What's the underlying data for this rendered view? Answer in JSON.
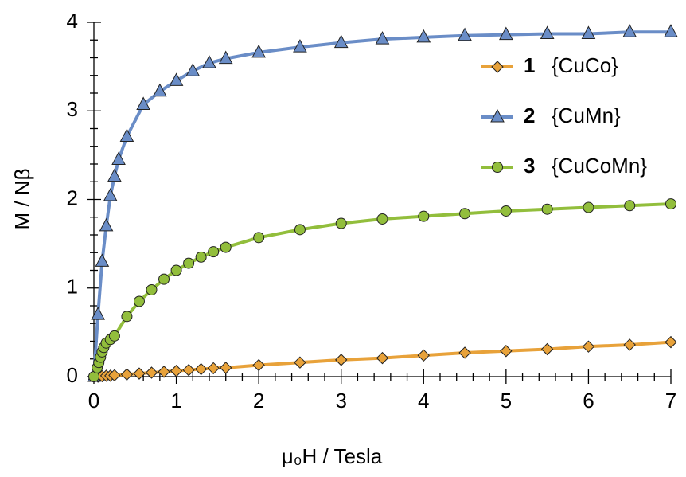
{
  "chart_data": {
    "type": "line",
    "xlabel": "μ₀H / Tesla",
    "ylabel": "M / Nβ",
    "xlim": [
      0,
      7
    ],
    "ylim": [
      0,
      4
    ],
    "xticks": [
      0,
      1,
      2,
      3,
      4,
      5,
      6,
      7
    ],
    "yticks": [
      0,
      1,
      2,
      3,
      4
    ],
    "minor_ticks": 5,
    "legend": "upper right",
    "series": [
      {
        "label": "1",
        "name": "{CuCo}",
        "color": "#E8A23A",
        "marker": "diamond",
        "x": [
          0,
          0.05,
          0.1,
          0.15,
          0.2,
          0.25,
          0.4,
          0.55,
          0.7,
          0.85,
          1.0,
          1.15,
          1.3,
          1.45,
          1.6,
          2,
          2.5,
          3,
          3.5,
          4,
          4.5,
          5,
          5.5,
          6,
          6.5,
          7
        ],
        "values": [
          0,
          0,
          0.005,
          0.01,
          0.01,
          0.015,
          0.025,
          0.035,
          0.045,
          0.055,
          0.065,
          0.075,
          0.085,
          0.095,
          0.1,
          0.13,
          0.16,
          0.19,
          0.21,
          0.24,
          0.27,
          0.29,
          0.31,
          0.34,
          0.36,
          0.39
        ]
      },
      {
        "label": "2",
        "name": "{CuMn}",
        "color": "#6A8DC7",
        "marker": "triangle",
        "x": [
          0,
          0.05,
          0.1,
          0.15,
          0.2,
          0.25,
          0.3,
          0.4,
          0.6,
          0.8,
          1.0,
          1.2,
          1.4,
          1.6,
          2,
          2.5,
          3,
          3.5,
          4,
          4.5,
          5,
          5.5,
          6,
          6.5,
          7
        ],
        "values": [
          0,
          0.7,
          1.3,
          1.7,
          2.04,
          2.26,
          2.45,
          2.71,
          3.07,
          3.22,
          3.34,
          3.45,
          3.54,
          3.59,
          3.66,
          3.72,
          3.77,
          3.81,
          3.83,
          3.85,
          3.86,
          3.87,
          3.87,
          3.89,
          3.89
        ]
      },
      {
        "label": "3",
        "name": "{CuCoMn}",
        "color": "#92BE3C",
        "marker": "circle",
        "x": [
          0,
          0.04,
          0.06,
          0.08,
          0.1,
          0.12,
          0.15,
          0.2,
          0.25,
          0.4,
          0.55,
          0.7,
          0.85,
          1.0,
          1.15,
          1.3,
          1.45,
          1.6,
          2,
          2.5,
          3,
          3.5,
          4,
          4.5,
          5,
          5.5,
          6,
          6.5,
          7
        ],
        "values": [
          0,
          0.1,
          0.16,
          0.22,
          0.28,
          0.33,
          0.38,
          0.42,
          0.46,
          0.68,
          0.85,
          0.98,
          1.1,
          1.2,
          1.28,
          1.35,
          1.41,
          1.46,
          1.57,
          1.66,
          1.73,
          1.78,
          1.81,
          1.84,
          1.87,
          1.89,
          1.91,
          1.93,
          1.95
        ]
      }
    ]
  }
}
